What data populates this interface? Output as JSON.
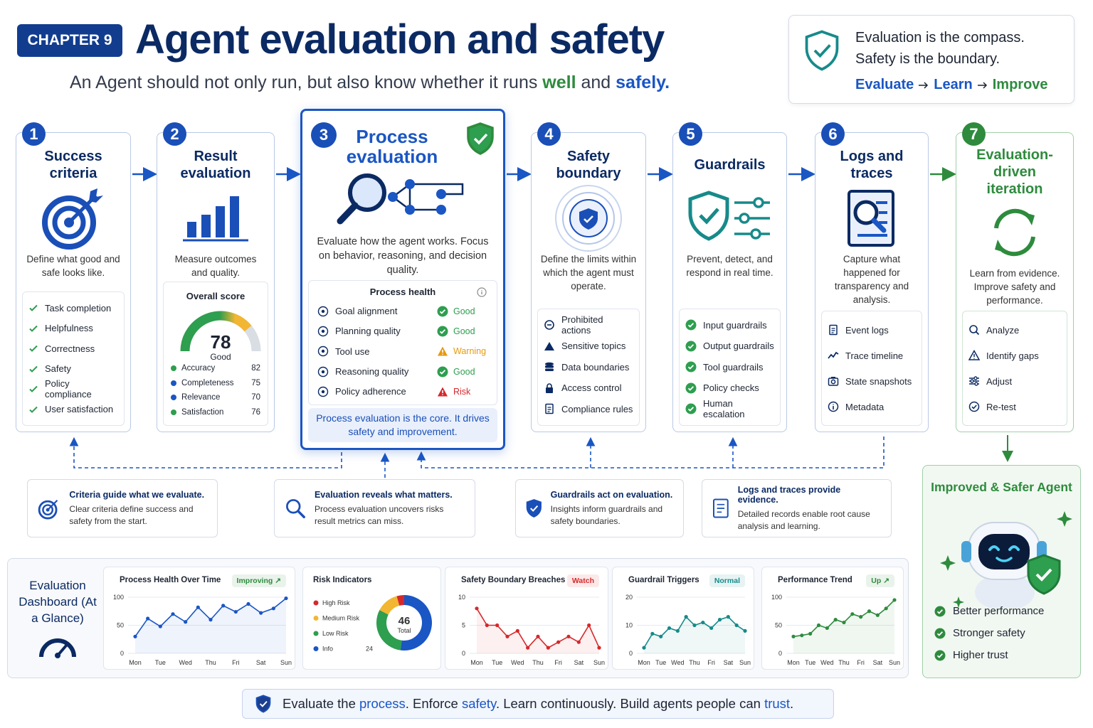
{
  "header": {
    "chapter": "CHAPTER 9",
    "title": "Agent evaluation and safety",
    "subtitle": [
      {
        "text": "An Agent should not only run, but also know whether it runs "
      },
      {
        "text": "well",
        "color": "#2e8b3d"
      },
      {
        "text": " and "
      },
      {
        "text": "safely.",
        "color": "#1a56c4"
      }
    ]
  },
  "callout": {
    "lines": [
      "Evaluation is the compass.",
      "Safety is the boundary."
    ],
    "flow": [
      "Evaluate",
      "Learn",
      "Improve"
    ]
  },
  "steps": [
    {
      "number": 1,
      "title": "Success criteria",
      "description": "Define what good and safe looks like.",
      "items": [
        "Task completion",
        "Helpfulness",
        "Correctness",
        "Safety",
        "Policy compliance",
        "User satisfaction"
      ]
    },
    {
      "number": 2,
      "title": "Result evaluation",
      "description": "Measure outcomes and quality.",
      "score": {
        "label": "Overall score",
        "value": 78,
        "rating": "Good",
        "ylim": [
          0,
          100
        ],
        "metrics": [
          {
            "name": "Accuracy",
            "value": 82,
            "color": "#2e9e4f"
          },
          {
            "name": "Completeness",
            "value": 75,
            "color": "#1a56c4"
          },
          {
            "name": "Relevance",
            "value": 70,
            "color": "#1a56c4"
          },
          {
            "name": "Satisfaction",
            "value": 76,
            "color": "#2e9e4f"
          }
        ]
      }
    },
    {
      "number": 3,
      "title": "Process evaluation",
      "description": "Evaluate how the agent works. Focus on behavior, reasoning, and decision quality.",
      "health": {
        "title": "Process health",
        "items": [
          {
            "name": "Goal alignment",
            "status": "Good",
            "color": "#2e9e4f"
          },
          {
            "name": "Planning quality",
            "status": "Good",
            "color": "#2e9e4f"
          },
          {
            "name": "Tool use",
            "status": "Warning",
            "color": "#e89a0c"
          },
          {
            "name": "Reasoning quality",
            "status": "Good",
            "color": "#2e9e4f"
          },
          {
            "name": "Policy adherence",
            "status": "Risk",
            "color": "#d6282b"
          }
        ],
        "footer": "Process evaluation is the core. It drives safety and improvement."
      }
    },
    {
      "number": 4,
      "title": "Safety boundary",
      "description": "Define the limits within which the agent must operate.",
      "items": [
        "Prohibited actions",
        "Sensitive topics",
        "Data boundaries",
        "Access control",
        "Compliance rules"
      ]
    },
    {
      "number": 5,
      "title": "Guardrails",
      "description": "Prevent, detect, and respond in real time.",
      "items": [
        "Input guardrails",
        "Output guardrails",
        "Tool guardrails",
        "Policy checks",
        "Human escalation"
      ]
    },
    {
      "number": 6,
      "title": "Logs and traces",
      "description": "Capture what happened for transparency and analysis.",
      "items": [
        "Event logs",
        "Trace timeline",
        "State snapshots",
        "Metadata"
      ]
    },
    {
      "number": 7,
      "title": "Evaluation-driven iteration",
      "description": "Learn from evidence. Improve safety and performance.",
      "items": [
        "Analyze",
        "Identify gaps",
        "Adjust",
        "Re-test"
      ]
    }
  ],
  "insights": [
    {
      "title": "Criteria guide what we evaluate.",
      "text": "Clear criteria define success and safety from the start."
    },
    {
      "title": "Evaluation reveals what matters.",
      "text": "Process evaluation uncovers risks result metrics can miss."
    },
    {
      "title": "Guardrails act on evaluation.",
      "text": "Insights inform guardrails and safety boundaries."
    },
    {
      "title": "Logs and traces provide evidence.",
      "text": "Detailed records enable root cause analysis and learning."
    }
  ],
  "dashboard": {
    "title": "Evaluation Dashboard (At a Glance)",
    "charts": [
      {
        "type": "line",
        "title": "Process Health Over Time",
        "badge": "Improving ↗",
        "badge_color": "#2e8b3d",
        "color": "#1a56c4",
        "categories": [
          "Mon",
          null,
          "Tue",
          null,
          "Wed",
          null,
          "Thu",
          null,
          "Fri",
          null,
          "Sat",
          null,
          "Sun"
        ],
        "values": [
          30,
          62,
          48,
          70,
          56,
          82,
          60,
          85,
          74,
          88,
          72,
          80,
          98
        ],
        "ylim": [
          0,
          100
        ],
        "yticks": [
          0,
          50,
          100
        ]
      },
      {
        "type": "pie",
        "title": "Risk Indicators",
        "center_value": 46,
        "center_label": "Total",
        "categories": [
          "High Risk",
          "Medium Risk",
          "Low Risk",
          "Info"
        ],
        "values": [
          2,
          6,
          14,
          24
        ],
        "value_labels": [
          null,
          null,
          null,
          "24"
        ],
        "colors": [
          "#d6282b",
          "#f2b632",
          "#2e9e4f",
          "#1a56c4"
        ]
      },
      {
        "type": "line",
        "title": "Safety Boundary Breaches",
        "badge": "Watch",
        "badge_color": "#d6282b",
        "color": "#d6282b",
        "categories": [
          "Mon",
          null,
          "Tue",
          null,
          "Wed",
          null,
          "Thu",
          null,
          "Fri",
          null,
          "Sat",
          null,
          "Sun"
        ],
        "values": [
          8,
          5,
          5,
          3,
          4,
          1,
          3,
          1,
          2,
          3,
          2,
          5,
          1
        ],
        "ylim": [
          0,
          10
        ],
        "yticks": [
          0,
          5,
          10
        ]
      },
      {
        "type": "line",
        "title": "Guardrail Triggers",
        "badge": "Normal",
        "badge_color": "#178a8a",
        "color": "#178a8a",
        "categories": [
          "Mon",
          null,
          "Tue",
          null,
          "Wed",
          null,
          "Thu",
          null,
          "Fri",
          null,
          "Sat",
          null,
          "Sun"
        ],
        "values": [
          2,
          7,
          6,
          9,
          8,
          13,
          10,
          11,
          9,
          12,
          13,
          10,
          8
        ],
        "ylim": [
          0,
          20
        ],
        "yticks": [
          0,
          10,
          20
        ]
      },
      {
        "type": "line",
        "title": "Performance Trend",
        "badge": "Up ↗",
        "badge_color": "#2e8b3d",
        "color": "#2e8b3d",
        "categories": [
          "Mon",
          null,
          "Tue",
          null,
          "Wed",
          null,
          "Thu",
          null,
          "Fri",
          null,
          "Sat",
          null,
          "Sun"
        ],
        "values": [
          30,
          32,
          35,
          50,
          45,
          60,
          55,
          70,
          65,
          75,
          68,
          80,
          95
        ],
        "ylim": [
          0,
          100
        ],
        "yticks": [
          0,
          50,
          100
        ]
      }
    ]
  },
  "agent": {
    "title": "Improved & Safer Agent",
    "items": [
      "Better performance",
      "Stronger safety",
      "Higher trust"
    ]
  },
  "footer": [
    {
      "text": "Evaluate the "
    },
    {
      "text": "process",
      "color": "#1a56c4"
    },
    {
      "text": ". Enforce "
    },
    {
      "text": "safety",
      "color": "#1a56c4"
    },
    {
      "text": ". Learn continuously. Build agents people can "
    },
    {
      "text": "trust",
      "color": "#1a56c4"
    },
    {
      "text": "."
    }
  ]
}
